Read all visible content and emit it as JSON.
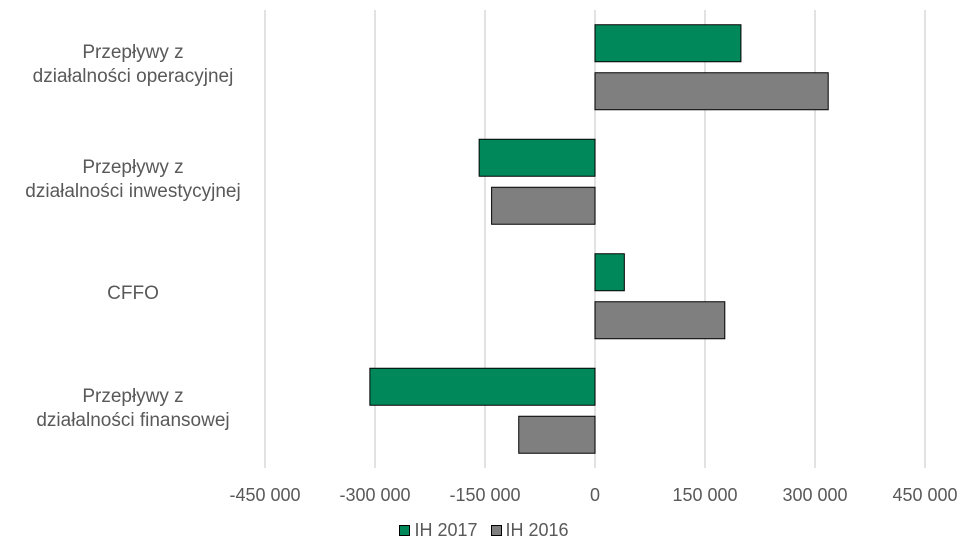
{
  "chart_data": {
    "type": "bar",
    "orientation": "horizontal",
    "categories": [
      [
        "Przepływy z",
        "działalności operacyjnej"
      ],
      [
        "Przepływy z",
        "działalności inwestycyjnej"
      ],
      [
        "CFFO"
      ],
      [
        "Przepływy z",
        "działalności finansowej"
      ]
    ],
    "series": [
      {
        "name": "IH 2017",
        "color": "#00875A",
        "values": [
          199000,
          -158000,
          40000,
          -307000
        ]
      },
      {
        "name": "IH 2016",
        "color": "#7F7F7F",
        "values": [
          318000,
          -141000,
          177000,
          -104000
        ]
      }
    ],
    "xlim": [
      -450000,
      450000
    ],
    "xticks": [
      -450000,
      -300000,
      -150000,
      0,
      150000,
      300000,
      450000
    ],
    "xtick_labels": [
      "-450 000",
      "-300 000",
      "-150 000",
      "0",
      "150 000",
      "300 000",
      "450 000"
    ],
    "grid": true,
    "legend": "bottom"
  }
}
